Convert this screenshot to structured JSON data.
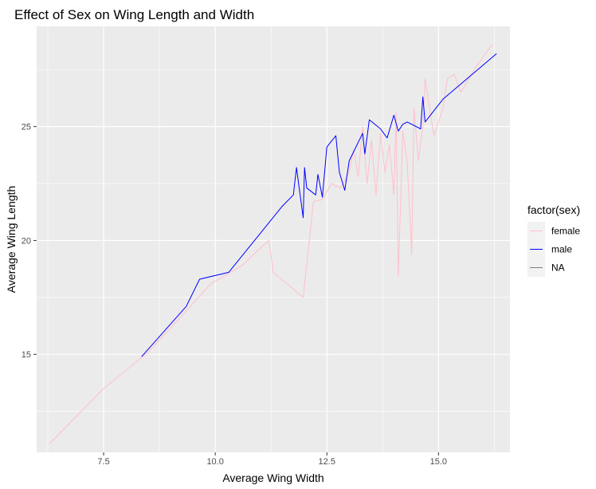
{
  "chart_data": {
    "type": "line",
    "title": "Effect of Sex on Wing Length and Width",
    "xlabel": "Average Wing Width",
    "ylabel": "Average Wing Length",
    "xlim": [
      6.0,
      16.6
    ],
    "ylim": [
      10.7,
      29.4
    ],
    "x_ticks": [
      7.5,
      10.0,
      12.5,
      15.0
    ],
    "x_tick_labels": [
      "7.5",
      "10.0",
      "12.5",
      "15.0"
    ],
    "y_ticks": [
      15,
      20,
      25
    ],
    "y_tick_labels": [
      "15",
      "20",
      "25"
    ],
    "grid": true,
    "legend": {
      "title": "factor(sex)",
      "position": "right"
    },
    "series": [
      {
        "name": "female",
        "color": "#ffc0cb",
        "points": [
          [
            6.3,
            11.1
          ],
          [
            7.5,
            13.5
          ],
          [
            8.5,
            15.1
          ],
          [
            9.3,
            16.8
          ],
          [
            9.9,
            18.1
          ],
          [
            10.6,
            18.9
          ],
          [
            11.2,
            20.0
          ],
          [
            11.3,
            18.6
          ],
          [
            11.97,
            17.5
          ],
          [
            12.2,
            21.7
          ],
          [
            12.4,
            21.8
          ],
          [
            12.6,
            22.5
          ],
          [
            12.8,
            22.3
          ],
          [
            13.0,
            23.0
          ],
          [
            13.1,
            24.0
          ],
          [
            13.2,
            22.8
          ],
          [
            13.3,
            25.0
          ],
          [
            13.4,
            22.5
          ],
          [
            13.5,
            24.4
          ],
          [
            13.6,
            22.0
          ],
          [
            13.7,
            24.7
          ],
          [
            13.8,
            23.0
          ],
          [
            13.9,
            24.2
          ],
          [
            14.0,
            22.0
          ],
          [
            14.05,
            25.6
          ],
          [
            14.1,
            18.4
          ],
          [
            14.2,
            24.8
          ],
          [
            14.3,
            23.4
          ],
          [
            14.4,
            19.4
          ],
          [
            14.45,
            25.8
          ],
          [
            14.55,
            23.5
          ],
          [
            14.65,
            25.0
          ],
          [
            14.7,
            27.1
          ],
          [
            14.8,
            25.8
          ],
          [
            14.9,
            24.6
          ],
          [
            15.0,
            25.2
          ],
          [
            15.1,
            25.8
          ],
          [
            15.2,
            27.1
          ],
          [
            15.35,
            27.3
          ],
          [
            15.5,
            26.5
          ],
          [
            15.8,
            27.5
          ],
          [
            16.2,
            28.6
          ]
        ]
      },
      {
        "name": "male",
        "color": "#0000ff",
        "points": [
          [
            8.35,
            14.9
          ],
          [
            9.35,
            17.1
          ],
          [
            9.65,
            18.3
          ],
          [
            10.3,
            18.6
          ],
          [
            11.5,
            21.5
          ],
          [
            11.75,
            22.0
          ],
          [
            11.82,
            23.2
          ],
          [
            11.88,
            22.3
          ],
          [
            11.97,
            21.0
          ],
          [
            12.0,
            23.2
          ],
          [
            12.05,
            22.3
          ],
          [
            12.25,
            22.0
          ],
          [
            12.3,
            22.9
          ],
          [
            12.4,
            21.9
          ],
          [
            12.5,
            24.1
          ],
          [
            12.7,
            24.6
          ],
          [
            12.78,
            23.0
          ],
          [
            12.9,
            22.2
          ],
          [
            13.0,
            23.5
          ],
          [
            13.3,
            24.7
          ],
          [
            13.35,
            23.8
          ],
          [
            13.45,
            25.3
          ],
          [
            13.7,
            24.9
          ],
          [
            13.85,
            24.5
          ],
          [
            14.0,
            25.5
          ],
          [
            14.1,
            24.8
          ],
          [
            14.2,
            25.1
          ],
          [
            14.3,
            25.2
          ],
          [
            14.6,
            24.9
          ],
          [
            14.65,
            26.3
          ],
          [
            14.7,
            25.2
          ],
          [
            15.1,
            26.2
          ],
          [
            16.3,
            28.2
          ]
        ]
      },
      {
        "name": "NA",
        "color": "#7f7f7f",
        "points": []
      }
    ]
  }
}
